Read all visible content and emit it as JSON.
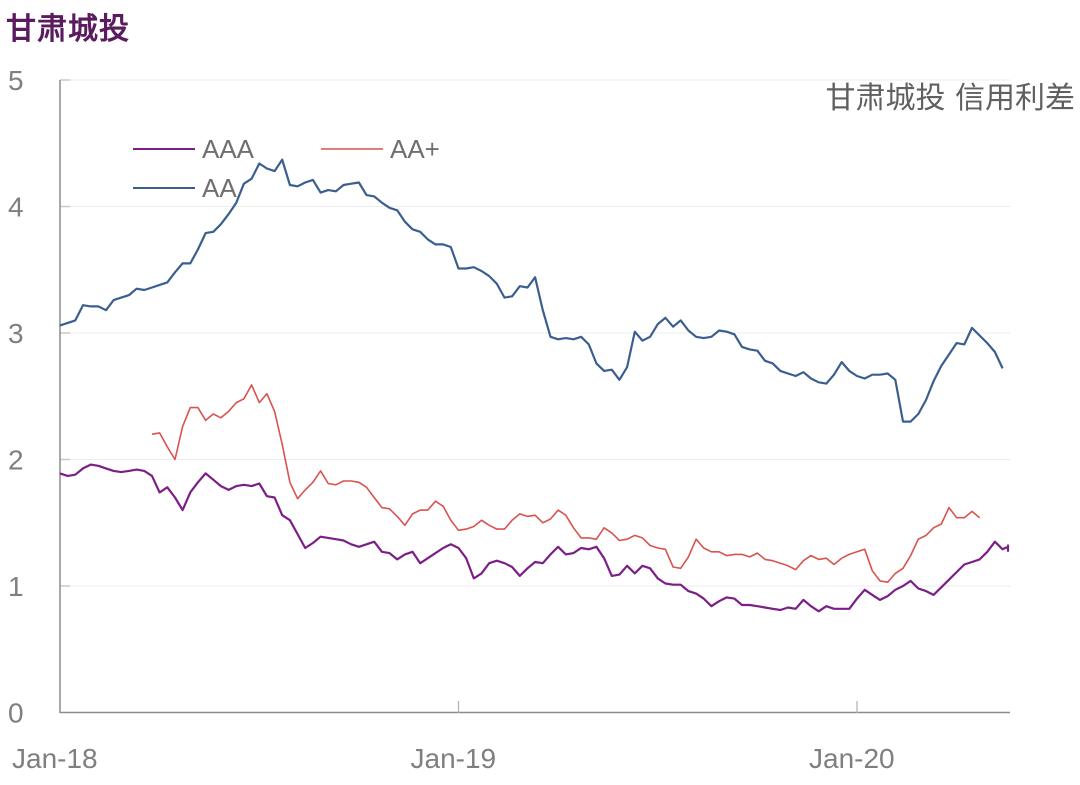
{
  "page_title": "甘肃城投",
  "chart_data": {
    "type": "line",
    "title": "甘肃城投 信用利差",
    "xlabel": "",
    "ylabel": "",
    "ylim": [
      0,
      5
    ],
    "yticks": [
      0,
      1,
      2,
      3,
      4,
      5
    ],
    "xticks": [
      "Jan-18",
      "Jan-19",
      "Jan-20"
    ],
    "grid": "horizontal",
    "legend_position": "upper-left",
    "frequency": "weekly",
    "x_start": "Jan-18",
    "series": [
      {
        "name": "AAA",
        "color": "#7b1f86",
        "start_index": 0,
        "values": [
          1.89,
          1.87,
          1.88,
          1.93,
          1.96,
          1.95,
          1.93,
          1.91,
          1.9,
          1.91,
          1.92,
          1.91,
          1.87,
          1.74,
          1.78,
          1.7,
          1.6,
          1.74,
          1.82,
          1.89,
          1.84,
          1.79,
          1.76,
          1.79,
          1.8,
          1.79,
          1.81,
          1.71,
          1.7,
          1.56,
          1.52,
          1.41,
          1.3,
          1.34,
          1.39,
          1.38,
          1.37,
          1.36,
          1.33,
          1.31,
          1.33,
          1.35,
          1.27,
          1.26,
          1.21,
          1.25,
          1.27,
          1.18,
          1.22,
          1.26,
          1.3,
          1.33,
          1.3,
          1.22,
          1.06,
          1.1,
          1.18,
          1.2,
          1.18,
          1.15,
          1.08,
          1.14,
          1.19,
          1.18,
          1.25,
          1.31,
          1.25,
          1.26,
          1.3,
          1.29,
          1.31,
          1.22,
          1.08,
          1.09,
          1.16,
          1.1,
          1.16,
          1.14,
          1.06,
          1.02,
          1.01,
          1.01,
          0.96,
          0.94,
          0.9,
          0.84,
          0.88,
          0.91,
          0.9,
          0.85,
          0.85,
          0.84,
          0.83,
          0.82,
          0.81,
          0.83,
          0.82,
          0.89,
          0.84,
          0.8,
          0.84,
          0.82,
          0.82,
          0.82,
          0.9,
          0.97,
          0.93,
          0.89,
          0.92,
          0.97,
          1.0,
          1.04,
          0.98,
          0.96,
          0.93,
          0.99,
          1.05,
          1.11,
          1.17,
          1.19,
          1.21,
          1.27,
          1.35,
          1.29,
          1.31,
          1.32,
          1.27
        ]
      },
      {
        "name": "AA+",
        "color": "#d9534f",
        "start_index": 12,
        "values": [
          2.2,
          2.21,
          2.1,
          2.0,
          2.26,
          2.41,
          2.41,
          2.31,
          2.36,
          2.33,
          2.38,
          2.45,
          2.48,
          2.59,
          2.45,
          2.52,
          2.38,
          2.12,
          1.82,
          1.69,
          1.76,
          1.82,
          1.91,
          1.81,
          1.8,
          1.83,
          1.83,
          1.82,
          1.78,
          1.7,
          1.62,
          1.61,
          1.55,
          1.48,
          1.57,
          1.6,
          1.6,
          1.67,
          1.63,
          1.52,
          1.44,
          1.45,
          1.47,
          1.52,
          1.48,
          1.45,
          1.45,
          1.52,
          1.57,
          1.55,
          1.56,
          1.5,
          1.53,
          1.6,
          1.56,
          1.46,
          1.38,
          1.38,
          1.37,
          1.46,
          1.42,
          1.36,
          1.37,
          1.4,
          1.38,
          1.32,
          1.3,
          1.29,
          1.15,
          1.14,
          1.23,
          1.37,
          1.3,
          1.27,
          1.27,
          1.24,
          1.25,
          1.25,
          1.23,
          1.26,
          1.21,
          1.2,
          1.18,
          1.16,
          1.13,
          1.2,
          1.24,
          1.21,
          1.22,
          1.17,
          1.22,
          1.25,
          1.27,
          1.29,
          1.12,
          1.04,
          1.03,
          1.1,
          1.14,
          1.24,
          1.37,
          1.4,
          1.46,
          1.49,
          1.62,
          1.54,
          1.54,
          1.59,
          1.54
        ]
      },
      {
        "name": "AA",
        "color": "#3a5f8f",
        "start_index": 0,
        "values": [
          3.06,
          3.08,
          3.1,
          3.22,
          3.21,
          3.21,
          3.18,
          3.26,
          3.28,
          3.3,
          3.35,
          3.34,
          3.36,
          3.38,
          3.4,
          3.48,
          3.55,
          3.55,
          3.66,
          3.79,
          3.8,
          3.86,
          3.94,
          4.03,
          4.18,
          4.22,
          4.34,
          4.3,
          4.28,
          4.37,
          4.17,
          4.16,
          4.19,
          4.21,
          4.11,
          4.13,
          4.12,
          4.17,
          4.18,
          4.19,
          4.09,
          4.08,
          4.03,
          3.99,
          3.97,
          3.88,
          3.82,
          3.8,
          3.74,
          3.7,
          3.7,
          3.68,
          3.51,
          3.51,
          3.52,
          3.49,
          3.45,
          3.39,
          3.28,
          3.29,
          3.37,
          3.36,
          3.44,
          3.18,
          2.97,
          2.95,
          2.96,
          2.95,
          2.97,
          2.91,
          2.76,
          2.7,
          2.71,
          2.63,
          2.73,
          3.01,
          2.94,
          2.97,
          3.07,
          3.12,
          3.05,
          3.1,
          3.02,
          2.97,
          2.96,
          2.97,
          3.02,
          3.01,
          2.99,
          2.89,
          2.87,
          2.86,
          2.78,
          2.76,
          2.7,
          2.68,
          2.66,
          2.69,
          2.64,
          2.61,
          2.6,
          2.67,
          2.77,
          2.7,
          2.66,
          2.64,
          2.67,
          2.67,
          2.68,
          2.63,
          2.3,
          2.3,
          2.36,
          2.47,
          2.62,
          2.74,
          2.83,
          2.92,
          2.91,
          3.04,
          2.98,
          2.92,
          2.85,
          2.72
        ]
      }
    ]
  },
  "legend": {
    "items": [
      {
        "label": "AAA",
        "color": "#7b1f86"
      },
      {
        "label": "AA+",
        "color": "#d9534f"
      },
      {
        "label": "AA",
        "color": "#3a5f8f"
      }
    ]
  }
}
